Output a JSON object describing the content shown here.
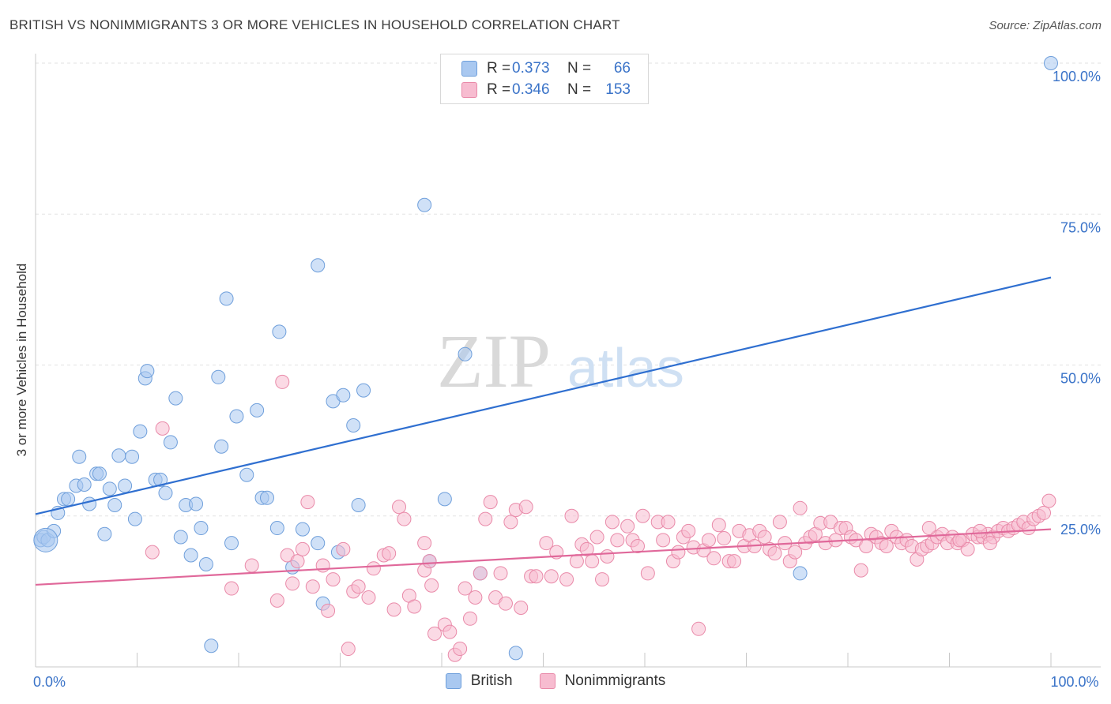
{
  "title": "BRITISH VS NONIMMIGRANTS 3 OR MORE VEHICLES IN HOUSEHOLD CORRELATION CHART",
  "source": "Source: ZipAtlas.com",
  "watermark": {
    "zip": "ZIP",
    "atlas": "atlas"
  },
  "legend_top": [
    {
      "r_label": "R =",
      "r_value": "0.373",
      "n_label": "N =",
      "n_value": "66",
      "color": "#a9c8f0",
      "border": "#6f9fdb"
    },
    {
      "r_label": "R =",
      "r_value": "0.346",
      "n_label": "N =",
      "n_value": "153",
      "color": "#f7bcd0",
      "border": "#e98aa9"
    }
  ],
  "legend_bottom": [
    {
      "label": "British",
      "color": "#a9c8f0",
      "border": "#6f9fdb"
    },
    {
      "label": "Nonimmigrants",
      "color": "#f7bcd0",
      "border": "#e98aa9"
    }
  ],
  "chart_data": {
    "type": "scatter",
    "xlabel": "",
    "ylabel": "3 or more Vehicles in Household",
    "xlim": [
      0,
      100
    ],
    "ylim": [
      0,
      100
    ],
    "x_tick_labels": [
      {
        "value": 0,
        "label": "0.0%"
      },
      {
        "value": 100,
        "label": "100.0%"
      }
    ],
    "y_tick_labels": [
      {
        "value": 25,
        "label": "25.0%"
      },
      {
        "value": 50,
        "label": "50.0%"
      },
      {
        "value": 75,
        "label": "75.0%"
      },
      {
        "value": 100,
        "label": "100.0%"
      }
    ],
    "grid": true,
    "series": [
      {
        "name": "British",
        "color": "#a9c8f0",
        "stroke": "#6f9fdb",
        "trend": {
          "x": [
            0,
            100
          ],
          "y": [
            25.3,
            64.5
          ],
          "color": "#2f6fd0"
        },
        "points": [
          [
            0.5,
            21.0
          ],
          [
            0.8,
            21.5
          ],
          [
            1.2,
            21.0
          ],
          [
            1.8,
            22.5
          ],
          [
            2.2,
            25.5
          ],
          [
            2.8,
            27.8
          ],
          [
            3.2,
            27.8
          ],
          [
            4.0,
            30.0
          ],
          [
            4.3,
            34.8
          ],
          [
            4.8,
            30.2
          ],
          [
            5.3,
            27.0
          ],
          [
            6.0,
            32.0
          ],
          [
            6.3,
            32.0
          ],
          [
            6.8,
            22.0
          ],
          [
            7.3,
            29.5
          ],
          [
            7.8,
            26.8
          ],
          [
            8.2,
            35.0
          ],
          [
            8.8,
            30.0
          ],
          [
            9.5,
            34.8
          ],
          [
            9.8,
            24.5
          ],
          [
            10.3,
            39.0
          ],
          [
            10.8,
            47.8
          ],
          [
            11.0,
            49.0
          ],
          [
            11.8,
            31.0
          ],
          [
            12.3,
            31.0
          ],
          [
            12.8,
            28.8
          ],
          [
            13.3,
            37.2
          ],
          [
            13.8,
            44.5
          ],
          [
            14.3,
            21.5
          ],
          [
            14.8,
            26.8
          ],
          [
            15.3,
            18.5
          ],
          [
            15.8,
            27.0
          ],
          [
            16.3,
            23.0
          ],
          [
            16.8,
            17.0
          ],
          [
            17.3,
            3.5
          ],
          [
            18.0,
            48.0
          ],
          [
            18.3,
            36.5
          ],
          [
            18.8,
            61.0
          ],
          [
            19.3,
            20.5
          ],
          [
            19.8,
            41.5
          ],
          [
            20.8,
            31.8
          ],
          [
            21.8,
            42.5
          ],
          [
            22.3,
            28.0
          ],
          [
            22.8,
            28.0
          ],
          [
            23.8,
            23.0
          ],
          [
            24.0,
            55.5
          ],
          [
            25.3,
            16.5
          ],
          [
            26.3,
            22.8
          ],
          [
            27.8,
            66.5
          ],
          [
            27.8,
            20.5
          ],
          [
            28.3,
            10.5
          ],
          [
            29.3,
            44.0
          ],
          [
            29.8,
            19.0
          ],
          [
            30.3,
            45.0
          ],
          [
            31.3,
            40.0
          ],
          [
            31.8,
            26.8
          ],
          [
            32.3,
            45.8
          ],
          [
            38.3,
            76.5
          ],
          [
            38.8,
            17.5
          ],
          [
            40.3,
            27.8
          ],
          [
            42.3,
            51.8
          ],
          [
            43.8,
            15.5
          ],
          [
            47.3,
            2.3
          ],
          [
            75.3,
            15.5
          ],
          [
            100.0,
            100.0
          ]
        ],
        "big_point": [
          1.0,
          21.0
        ]
      },
      {
        "name": "Nonimmigrants",
        "color": "#f7bcd0",
        "stroke": "#e98aa9",
        "trend": {
          "x": [
            0,
            100
          ],
          "y": [
            13.6,
            22.8
          ],
          "color": "#e0689a"
        },
        "points": [
          [
            11.5,
            19.0
          ],
          [
            12.5,
            39.5
          ],
          [
            19.3,
            13.0
          ],
          [
            21.3,
            16.8
          ],
          [
            23.8,
            11.0
          ],
          [
            24.3,
            47.2
          ],
          [
            24.8,
            18.5
          ],
          [
            25.3,
            13.8
          ],
          [
            25.8,
            17.5
          ],
          [
            26.3,
            19.5
          ],
          [
            26.8,
            27.3
          ],
          [
            27.3,
            13.3
          ],
          [
            28.3,
            16.8
          ],
          [
            28.8,
            9.3
          ],
          [
            29.3,
            14.5
          ],
          [
            30.3,
            19.5
          ],
          [
            30.8,
            3.0
          ],
          [
            31.3,
            12.5
          ],
          [
            31.8,
            13.3
          ],
          [
            32.8,
            11.5
          ],
          [
            33.3,
            16.3
          ],
          [
            34.3,
            18.5
          ],
          [
            35.3,
            9.5
          ],
          [
            34.8,
            18.8
          ],
          [
            35.8,
            26.5
          ],
          [
            36.3,
            24.5
          ],
          [
            36.8,
            11.8
          ],
          [
            37.3,
            10.0
          ],
          [
            38.3,
            16.0
          ],
          [
            38.8,
            17.5
          ],
          [
            38.3,
            20.5
          ],
          [
            39.0,
            13.5
          ],
          [
            39.3,
            5.5
          ],
          [
            40.3,
            7.0
          ],
          [
            40.8,
            5.8
          ],
          [
            41.3,
            2.0
          ],
          [
            41.8,
            3.0
          ],
          [
            42.3,
            13.0
          ],
          [
            42.8,
            8.0
          ],
          [
            43.3,
            11.5
          ],
          [
            43.8,
            15.5
          ],
          [
            44.3,
            24.5
          ],
          [
            44.8,
            27.3
          ],
          [
            45.3,
            11.5
          ],
          [
            45.8,
            15.5
          ],
          [
            46.3,
            10.5
          ],
          [
            46.8,
            24.0
          ],
          [
            47.3,
            26.0
          ],
          [
            47.8,
            9.8
          ],
          [
            48.3,
            26.5
          ],
          [
            48.8,
            15.0
          ],
          [
            49.3,
            15.0
          ],
          [
            50.3,
            20.5
          ],
          [
            50.8,
            15.0
          ],
          [
            51.3,
            19.0
          ],
          [
            52.3,
            14.5
          ],
          [
            52.8,
            25.0
          ],
          [
            53.3,
            17.5
          ],
          [
            53.8,
            20.3
          ],
          [
            54.3,
            19.5
          ],
          [
            54.8,
            17.5
          ],
          [
            55.3,
            21.5
          ],
          [
            55.8,
            14.5
          ],
          [
            56.3,
            18.3
          ],
          [
            56.8,
            24.0
          ],
          [
            57.3,
            21.0
          ],
          [
            58.3,
            23.3
          ],
          [
            58.8,
            21.0
          ],
          [
            59.3,
            20.0
          ],
          [
            59.8,
            25.0
          ],
          [
            60.3,
            15.5
          ],
          [
            61.3,
            24.0
          ],
          [
            61.8,
            21.0
          ],
          [
            62.3,
            24.0
          ],
          [
            62.8,
            17.5
          ],
          [
            63.3,
            19.0
          ],
          [
            63.8,
            21.5
          ],
          [
            64.3,
            22.5
          ],
          [
            64.8,
            19.8
          ],
          [
            65.3,
            6.3
          ],
          [
            65.8,
            19.3
          ],
          [
            66.3,
            21.0
          ],
          [
            66.8,
            18.0
          ],
          [
            67.3,
            23.5
          ],
          [
            67.8,
            21.3
          ],
          [
            68.3,
            17.5
          ],
          [
            68.8,
            17.5
          ],
          [
            69.3,
            22.5
          ],
          [
            69.8,
            20.0
          ],
          [
            70.3,
            21.8
          ],
          [
            70.8,
            20.0
          ],
          [
            71.3,
            22.5
          ],
          [
            71.8,
            21.5
          ],
          [
            72.3,
            19.5
          ],
          [
            72.8,
            18.8
          ],
          [
            73.3,
            24.0
          ],
          [
            73.8,
            20.5
          ],
          [
            74.3,
            17.5
          ],
          [
            74.8,
            19.0
          ],
          [
            75.3,
            26.3
          ],
          [
            75.8,
            20.5
          ],
          [
            76.3,
            21.5
          ],
          [
            76.8,
            22.0
          ],
          [
            77.3,
            23.8
          ],
          [
            77.8,
            20.5
          ],
          [
            78.3,
            24.0
          ],
          [
            78.8,
            21.0
          ],
          [
            79.3,
            23.0
          ],
          [
            79.8,
            23.0
          ],
          [
            80.3,
            21.5
          ],
          [
            80.8,
            21.0
          ],
          [
            81.3,
            16.0
          ],
          [
            81.8,
            20.0
          ],
          [
            82.3,
            22.0
          ],
          [
            82.8,
            21.5
          ],
          [
            83.3,
            20.5
          ],
          [
            83.8,
            20.0
          ],
          [
            84.3,
            22.5
          ],
          [
            84.8,
            21.5
          ],
          [
            85.3,
            20.5
          ],
          [
            85.8,
            21.0
          ],
          [
            86.3,
            20.0
          ],
          [
            86.8,
            17.8
          ],
          [
            87.3,
            19.5
          ],
          [
            87.8,
            20.0
          ],
          [
            88.3,
            20.5
          ],
          [
            88.8,
            21.5
          ],
          [
            89.3,
            22.0
          ],
          [
            89.8,
            20.5
          ],
          [
            90.3,
            21.5
          ],
          [
            90.8,
            20.5
          ],
          [
            91.3,
            21.0
          ],
          [
            91.8,
            19.5
          ],
          [
            92.3,
            22.0
          ],
          [
            92.8,
            21.5
          ],
          [
            93.3,
            21.5
          ],
          [
            93.8,
            22.0
          ],
          [
            94.3,
            21.5
          ],
          [
            94.8,
            22.5
          ],
          [
            95.3,
            23.0
          ],
          [
            95.8,
            22.5
          ],
          [
            96.3,
            23.0
          ],
          [
            96.8,
            23.5
          ],
          [
            97.3,
            24.0
          ],
          [
            97.8,
            23.0
          ],
          [
            98.3,
            24.5
          ],
          [
            98.8,
            25.0
          ],
          [
            99.3,
            25.5
          ],
          [
            99.8,
            27.5
          ],
          [
            88.0,
            23.0
          ],
          [
            91.0,
            21.0
          ],
          [
            93.0,
            22.5
          ],
          [
            94.0,
            20.5
          ]
        ]
      }
    ]
  }
}
